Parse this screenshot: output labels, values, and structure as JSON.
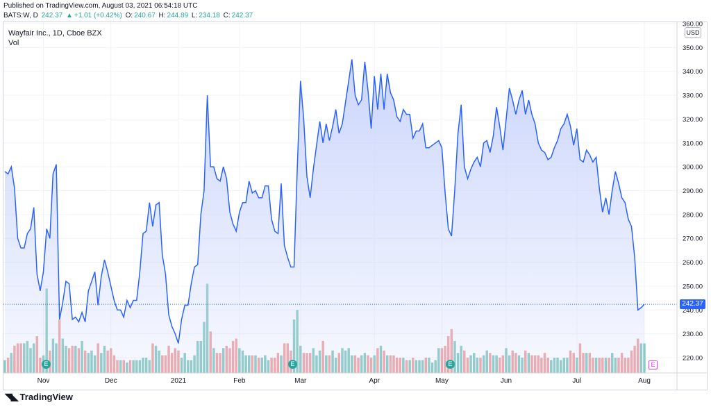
{
  "header": {
    "published": "Published on TradingView.com, August 03, 2021 06:54:18 UTC",
    "symbol": "BATS:W, D",
    "last": "242.37",
    "change": "+1.01 (+0.42%)",
    "o_label": "O:",
    "o": "240.67",
    "h_label": "H:",
    "h": "244.89",
    "l_label": "L:",
    "l": "234.18",
    "c_label": "C:",
    "c": "242.37"
  },
  "legend": {
    "title": "Wayfair Inc., 1D, Cboe BZX",
    "sub": "Vol"
  },
  "axis": {
    "currency": "USD",
    "current_price": "242.37"
  },
  "brand": {
    "icon": "tradingview-logo-icon",
    "name": "TradingView"
  },
  "earnings_markers": {
    "label": "E"
  },
  "colors": {
    "line": "#2962ff",
    "area_top": "#c9d4fb",
    "vol_up": "#88c9c1",
    "vol_down": "#f0a3a3",
    "grid": "#f0f3fa"
  },
  "chart_data": {
    "type": "area",
    "title": "Wayfair Inc., 1D, Cboe BZX",
    "ylim": [
      212,
      360
    ],
    "y_ticks": [
      220,
      230,
      240,
      250,
      260,
      270,
      280,
      290,
      300,
      310,
      320,
      330,
      340,
      350,
      360
    ],
    "y_tick_labels": [
      "220.00",
      "230.00",
      "240.00",
      "250.00",
      "260.00",
      "270.00",
      "280.00",
      "290.00",
      "300.00",
      "310.00",
      "320.00",
      "330.00",
      "340.00",
      "350.00",
      "360.00"
    ],
    "x_ticks": [
      {
        "label": "Nov",
        "i": 12
      },
      {
        "label": "Dec",
        "i": 33
      },
      {
        "label": "2021",
        "i": 54
      },
      {
        "label": "Feb",
        "i": 73
      },
      {
        "label": "Mar",
        "i": 92
      },
      {
        "label": "Apr",
        "i": 115
      },
      {
        "label": "May",
        "i": 136
      },
      {
        "label": "Jun",
        "i": 156
      },
      {
        "label": "Jul",
        "i": 178
      },
      {
        "label": "Aug",
        "i": 199
      }
    ],
    "n_slots": 200,
    "series": [
      {
        "values": [
          298,
          297,
          300,
          291,
          270,
          266,
          266,
          272,
          274,
          283,
          255,
          248,
          256,
          274,
          270,
          297,
          301,
          236,
          243,
          252,
          251,
          236,
          237,
          235,
          239,
          235,
          248,
          252,
          256,
          242,
          254,
          261,
          256,
          250,
          244,
          240,
          240,
          237,
          244,
          241,
          244,
          244,
          256,
          272,
          273,
          285,
          275,
          284,
          285,
          263,
          255,
          238,
          233,
          230,
          226,
          236,
          242,
          242,
          251,
          258,
          259,
          280,
          290,
          330,
          300,
          300,
          295,
          294,
          300,
          295,
          281,
          276,
          273,
          281,
          285,
          285,
          294,
          289,
          290,
          287,
          287,
          292,
          292,
          278,
          273,
          272,
          293,
          267,
          262,
          258,
          258,
          300,
          336,
          320,
          296,
          287,
          299,
          309,
          319,
          310,
          318,
          311,
          317,
          324,
          314,
          318,
          327,
          336,
          345,
          330,
          326,
          328,
          344,
          332,
          316,
          338,
          324,
          339,
          324,
          339,
          331,
          328,
          321,
          319,
          324,
          322,
          322,
          312,
          315,
          315,
          318,
          308,
          308,
          309,
          310,
          311,
          308,
          289,
          274,
          271,
          290,
          314,
          326,
          300,
          295,
          299,
          302,
          304,
          300,
          310,
          311,
          306,
          313,
          325,
          317,
          307,
          320,
          333,
          328,
          322,
          328,
          332,
          322,
          328,
          322,
          318,
          310,
          307,
          306,
          303,
          304,
          308,
          311,
          316,
          318,
          322,
          317,
          309,
          316,
          303,
          302,
          307,
          305,
          302,
          304,
          291,
          281,
          287,
          280,
          290,
          298,
          293,
          287,
          285,
          278,
          275,
          262,
          240,
          241,
          242.37
        ],
        "volume": [
          219,
          220,
          222,
          225,
          226,
          226,
          226,
          227,
          224,
          226,
          229,
          220,
          221,
          249,
          223,
          228,
          226,
          236,
          228,
          225,
          224,
          225,
          225,
          224,
          227,
          223,
          222,
          223,
          221,
          226,
          222,
          225,
          223,
          224,
          221,
          219,
          219,
          219,
          218,
          219,
          219,
          219,
          219,
          220,
          220,
          219,
          226,
          225,
          223,
          221,
          221,
          225,
          222,
          224,
          223,
          220,
          222,
          219,
          219,
          221,
          227,
          227,
          235,
          251,
          231,
          224,
          222,
          222,
          224,
          225,
          224,
          227,
          228,
          224,
          223,
          221,
          221,
          221,
          221,
          220,
          220,
          221,
          219,
          220,
          220,
          222,
          221,
          226,
          226,
          223,
          236,
          240,
          225,
          222,
          222,
          222,
          224,
          221,
          223,
          227,
          221,
          221,
          223,
          220,
          222,
          224,
          223,
          224,
          221,
          221,
          220,
          221,
          222,
          221,
          220,
          221,
          224,
          225,
          223,
          221,
          221,
          221,
          220,
          220,
          220,
          219,
          219,
          220,
          219,
          219,
          219,
          220,
          220,
          218,
          219,
          224,
          224,
          225,
          229,
          232,
          227,
          222,
          225,
          223,
          220,
          221,
          222,
          220,
          220,
          221,
          223,
          222,
          221,
          221,
          220,
          221,
          224,
          221,
          223,
          222,
          221,
          220,
          223,
          222,
          221,
          221,
          221,
          220,
          222,
          220,
          219,
          220,
          220,
          219,
          220,
          220,
          223,
          222,
          220,
          226,
          222,
          222,
          222,
          220,
          220,
          220,
          220,
          220,
          220,
          222,
          220,
          220,
          222,
          220,
          220,
          223,
          225,
          228,
          226,
          226
        ]
      }
    ]
  }
}
